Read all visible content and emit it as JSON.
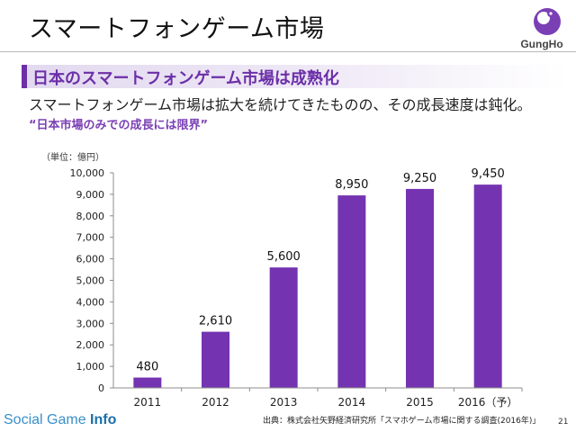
{
  "slide": {
    "title": "スマートフォンゲーム市場",
    "logo_text": "GungHo",
    "heading": "日本のスマートフォンゲーム市場は成熟化",
    "lead": "スマートフォンゲーム市場は拡大を続けてきたものの、その成長速度は鈍化。",
    "quote": "“日本市場のみでの成長には限界”",
    "credit_a": "Social Game ",
    "credit_b": "Info",
    "source": "出典：株式会社矢野経済研究所「スマホゲーム市場に関する調査(2016年)」",
    "page": "21"
  },
  "colors": {
    "bar": "#7433b0",
    "accent": "#6b2fa8"
  },
  "chart_data": {
    "type": "bar",
    "unit_label": "（単位：億円）",
    "categories": [
      "2011",
      "2012",
      "2013",
      "2014",
      "2015",
      "2016（予）"
    ],
    "values": [
      480,
      2610,
      5600,
      8950,
      9250,
      9450
    ],
    "value_labels": [
      "480",
      "2,610",
      "5,600",
      "8,950",
      "9,250",
      "9,450"
    ],
    "ylim": [
      0,
      10000
    ],
    "yticks": [
      0,
      1000,
      2000,
      3000,
      4000,
      5000,
      6000,
      7000,
      8000,
      9000,
      10000
    ],
    "ytick_labels": [
      "0",
      "1,000",
      "2,000",
      "3,000",
      "4,000",
      "5,000",
      "6,000",
      "7,000",
      "8,000",
      "9,000",
      "10,000"
    ],
    "grid": false,
    "legend": "none"
  }
}
